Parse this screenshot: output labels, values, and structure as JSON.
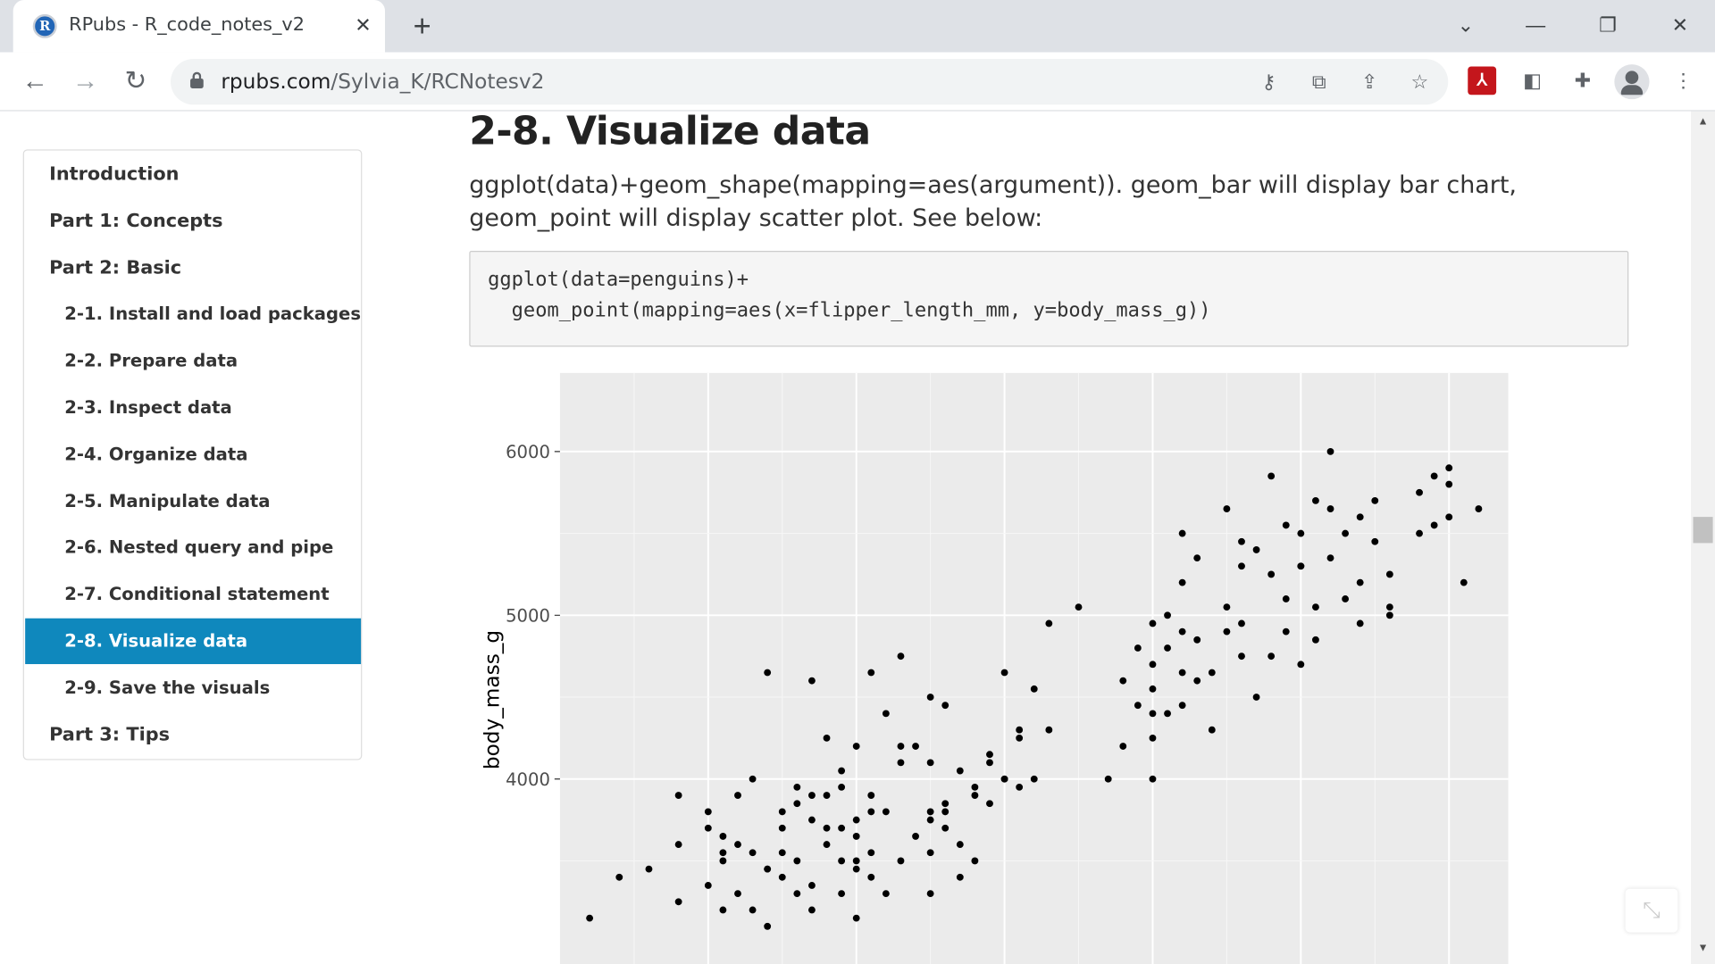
{
  "browser": {
    "tab_title": "RPubs - R_code_notes_v2",
    "url_host": "rpubs.com",
    "url_path": "/Sylvia_K/RCNotesv2",
    "favicon_letter": "R",
    "icons": [
      "back-icon",
      "forward-icon",
      "reload-icon",
      "lock-icon",
      "key-icon",
      "translate-icon",
      "share-icon",
      "star-icon",
      "acrobat-icon",
      "extension-icon",
      "puzzle-icon",
      "profile-icon",
      "menu-icon"
    ]
  },
  "toc": {
    "items": [
      {
        "label": "Introduction",
        "level": 1,
        "active": false
      },
      {
        "label": "Part 1: Concepts",
        "level": 1,
        "active": false
      },
      {
        "label": "Part 2: Basic",
        "level": 1,
        "active": false
      },
      {
        "label": "2-1. Install and load packages",
        "level": 2,
        "active": false
      },
      {
        "label": "2-2. Prepare data",
        "level": 2,
        "active": false
      },
      {
        "label": "2-3. Inspect data",
        "level": 2,
        "active": false
      },
      {
        "label": "2-4. Organize data",
        "level": 2,
        "active": false
      },
      {
        "label": "2-5. Manipulate data",
        "level": 2,
        "active": false
      },
      {
        "label": "2-6. Nested query and pipe",
        "level": 2,
        "active": false
      },
      {
        "label": "2-7. Conditional statement",
        "level": 2,
        "active": false
      },
      {
        "label": "2-8. Visualize data",
        "level": 2,
        "active": true
      },
      {
        "label": "2-9. Save the visuals",
        "level": 2,
        "active": false
      },
      {
        "label": "Part 3: Tips",
        "level": 1,
        "active": false
      }
    ]
  },
  "content": {
    "heading": "2-8. Visualize data",
    "paragraph": "ggplot(data)+geom_shape(mapping=aes(argument)). geom_bar will display bar chart, geom_point will display scatter plot. See below:",
    "code_lines": [
      "ggplot(data=penguins)+",
      "  geom_point(mapping=aes(x=flipper_length_mm, y=body_mass_g))"
    ]
  },
  "colors": {
    "active_toc": "#0f88bd",
    "plot_panel": "#ebebeb",
    "grid_major": "#ffffff",
    "point": "#000000"
  },
  "chart_data": {
    "type": "scatter",
    "title": "",
    "xlabel": "",
    "ylabel": "body_mass_g",
    "yticks": [
      4000,
      5000,
      6000
    ],
    "xlim": [
      170,
      234
    ],
    "ylim": [
      2850,
      6480
    ],
    "x": [
      172,
      174,
      176,
      178,
      178,
      178,
      180,
      180,
      180,
      181,
      181,
      181,
      182,
      182,
      182,
      183,
      183,
      184,
      184,
      184,
      185,
      185,
      185,
      186,
      186,
      186,
      187,
      187,
      187,
      187,
      188,
      188,
      188,
      189,
      189,
      189,
      189,
      190,
      190,
      190,
      190,
      190,
      191,
      191,
      191,
      191,
      192,
      192,
      192,
      193,
      193,
      193,
      194,
      194,
      195,
      195,
      195,
      195,
      195,
      196,
      196,
      196,
      197,
      197,
      197,
      198,
      198,
      199,
      199,
      200,
      200,
      201,
      201,
      202,
      203,
      203,
      205,
      207,
      208,
      208,
      209,
      209,
      210,
      210,
      210,
      210,
      210,
      211,
      211,
      211,
      212,
      212,
      212,
      212,
      213,
      213,
      213,
      214,
      215,
      215,
      215,
      216,
      216,
      216,
      217,
      217,
      218,
      218,
      219,
      219,
      219,
      220,
      220,
      220,
      221,
      221,
      221,
      222,
      222,
      223,
      223,
      224,
      224,
      225,
      225,
      226,
      226,
      228,
      228,
      229,
      229,
      230,
      230,
      230,
      231,
      232,
      210,
      212,
      214,
      216,
      218,
      220,
      222,
      224,
      226,
      201,
      199,
      195,
      193,
      191,
      189,
      187,
      185,
      183,
      181,
      190,
      188,
      186,
      184,
      196,
      198,
      200,
      202
    ],
    "y": [
      3150,
      3400,
      3450,
      3250,
      3900,
      3600,
      3700,
      3800,
      3350,
      3550,
      3500,
      3200,
      3900,
      3600,
      3300,
      3550,
      3200,
      4650,
      3100,
      3450,
      3700,
      3400,
      3800,
      3500,
      3950,
      3300,
      4600,
      3750,
      3350,
      3200,
      4250,
      3600,
      3900,
      4050,
      3500,
      3700,
      3300,
      4200,
      3750,
      3450,
      3650,
      3150,
      4650,
      3900,
      3400,
      3550,
      4400,
      3800,
      3300,
      4750,
      4100,
      3500,
      4200,
      3650,
      4500,
      3750,
      3300,
      4100,
      3550,
      4450,
      3850,
      3700,
      4050,
      3600,
      3400,
      3950,
      3500,
      4100,
      3850,
      4650,
      4000,
      3950,
      4300,
      4550,
      4950,
      4300,
      5050,
      4000,
      4600,
      4200,
      4800,
      4450,
      4700,
      4950,
      4550,
      4250,
      4000,
      4800,
      4400,
      5000,
      5200,
      4650,
      4900,
      5500,
      5350,
      4850,
      4600,
      4650,
      5050,
      5650,
      4900,
      5300,
      4950,
      4750,
      5400,
      4500,
      5850,
      5250,
      5550,
      4900,
      5100,
      5300,
      4700,
      5500,
      5700,
      5050,
      4850,
      5650,
      5350,
      5100,
      5500,
      4950,
      5600,
      5450,
      5700,
      5050,
      5250,
      5750,
      5500,
      5850,
      5550,
      5900,
      5800,
      5600,
      5200,
      5650,
      4400,
      4450,
      4300,
      5450,
      4750,
      5300,
      6000,
      5200,
      5000,
      4250,
      4150,
      3800,
      4200,
      3800,
      3950,
      3900,
      3550,
      4000,
      3650,
      3500,
      3700,
      3850,
      3450,
      3800,
      3900,
      4000,
      4000
    ]
  }
}
